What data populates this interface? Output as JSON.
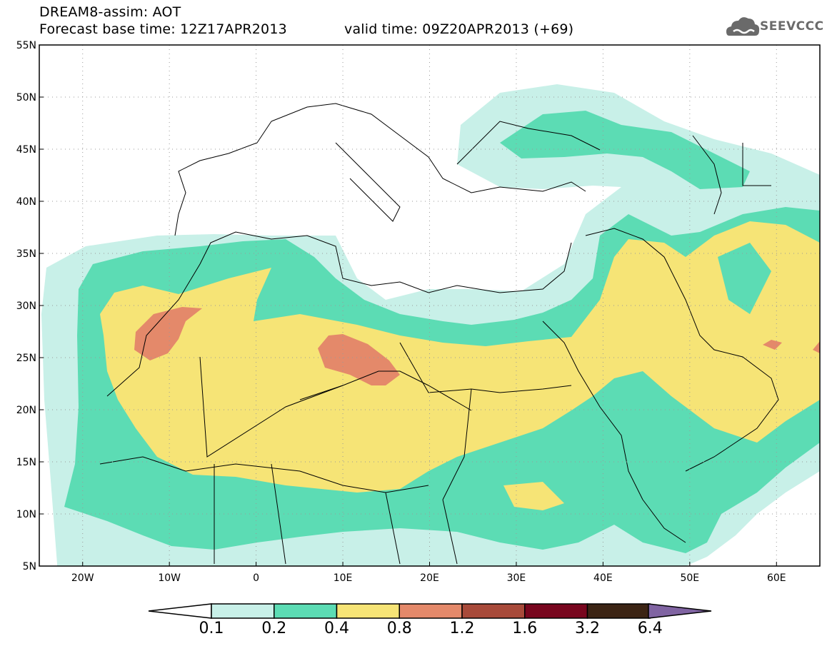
{
  "header": {
    "title_line1": "DREAM8-assim: AOT",
    "forecast_base": "Forecast base time: 12Z17APR2013",
    "valid_time": "valid time: 09Z20APR2013 (+69)",
    "logo_text": "SEEVCCC"
  },
  "map": {
    "lat_labels": [
      "55N",
      "50N",
      "45N",
      "40N",
      "35N",
      "30N",
      "25N",
      "20N",
      "15N",
      "10N",
      "5N"
    ],
    "lon_labels": [
      "20W",
      "10W",
      "0",
      "10E",
      "20E",
      "30E",
      "40E",
      "50E",
      "60E"
    ],
    "lat_range": [
      5,
      55
    ],
    "lon_range": [
      -25,
      65
    ],
    "grid": "dotted"
  },
  "colorbar": {
    "labels": [
      "0.1",
      "0.2",
      "0.4",
      "0.8",
      "1.2",
      "1.6",
      "3.2",
      "6.4"
    ],
    "colors": [
      "#c8f0e8",
      "#5cdcb4",
      "#f6e476",
      "#e4896a",
      "#a84a3a",
      "#78061e",
      "#3c2414",
      "#8064a2"
    ]
  }
}
